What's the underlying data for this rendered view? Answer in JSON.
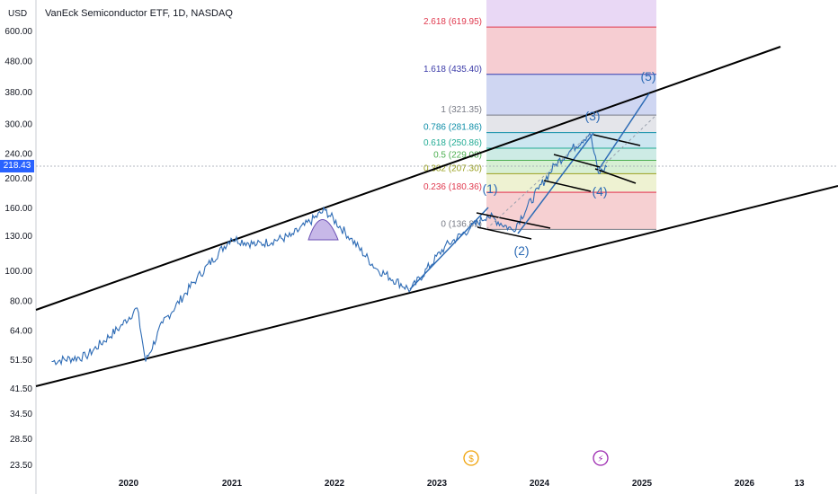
{
  "header": {
    "title": "VanEck Semiconductor ETF, 1D, NASDAQ",
    "currency": "USD",
    "last_price": "218.43"
  },
  "colors": {
    "price_line": "#2d6bb5",
    "channel": "#000000",
    "price_tag": "#2962ff"
  },
  "chart_data": {
    "type": "line",
    "y_scale": "log",
    "y_ticks": [
      "600.00",
      "480.00",
      "380.00",
      "300.00",
      "240.00",
      "200.00",
      "160.00",
      "130.00",
      "100.00",
      "80.00",
      "64.00",
      "51.50",
      "41.50",
      "34.50",
      "28.50",
      "23.50"
    ],
    "x_ticks": [
      "2020",
      "2021",
      "2022",
      "2023",
      "2024",
      "2025",
      "2026",
      "13"
    ],
    "series": [
      {
        "x": [
          "2019-04",
          "2019-08",
          "2019-12",
          "2020-02",
          "2020-03",
          "2020-05",
          "2020-09",
          "2021-01",
          "2021-04",
          "2021-08",
          "2021-12",
          "2022-03",
          "2022-06",
          "2022-10",
          "2023-02",
          "2023-05",
          "2023-07",
          "2023-10",
          "2024-01",
          "2024-03",
          "2024-07",
          "2024-08",
          "2024-09"
        ],
        "y": [
          51,
          53,
          66,
          76,
          51,
          68,
          95,
          128,
          122,
          130,
          158,
          128,
          102,
          87,
          120,
          138,
          152,
          136,
          185,
          223,
          281,
          208,
          218
        ]
      }
    ],
    "fibonacci": [
      {
        "ratio": "2.618",
        "price": "(619.95)",
        "color": "#e0394e"
      },
      {
        "ratio": "1.618",
        "price": "(435.40)",
        "color": "#3b3ba8"
      },
      {
        "ratio": "1",
        "price": "(321.35)",
        "color": "#787b86"
      },
      {
        "ratio": "0.786",
        "price": "(281.86)",
        "color": "#0e8ea8"
      },
      {
        "ratio": "0.618",
        "price": "(250.86)",
        "color": "#22ab94"
      },
      {
        "ratio": "0.5",
        "price": "(229.08)",
        "color": "#4caf50"
      },
      {
        "ratio": "0.382",
        "price": "(207.30)",
        "color": "#9aa120"
      },
      {
        "ratio": "0.236",
        "price": "(180.36)",
        "color": "#e0394e"
      },
      {
        "ratio": "0",
        "price": "(136.81)",
        "color": "#787b86"
      }
    ],
    "wave_labels": [
      "(1)",
      "(2)",
      "(3)",
      "(4)",
      "(5)"
    ],
    "event_icons": [
      "$",
      "⚡"
    ]
  }
}
